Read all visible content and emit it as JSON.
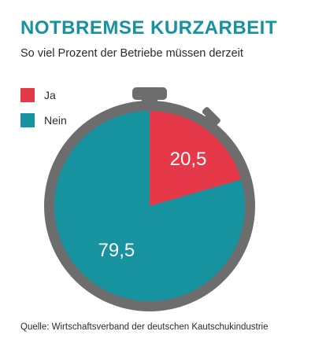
{
  "header": {
    "title": "NOTBREMSE KURZARBEIT",
    "subtitle": "So viel Prozent der Betriebe müssen derzeit"
  },
  "footer": {
    "source": "Quelle: Wirtschaftsverband der deutschen Kautschukindustrie"
  },
  "colors": {
    "ja": "#e5394a",
    "nein": "#17929f",
    "stopwatch": "#6d6d6d",
    "title": "#17929f"
  },
  "chart_data": {
    "type": "pie",
    "title": "NOTBREMSE KURZARBEIT",
    "subtitle": "So viel Prozent der Betriebe müssen derzeit",
    "legend_position": "top-left",
    "slices": [
      {
        "label": "Ja",
        "value": 20.5,
        "value_label": "20,5",
        "color": "#e5394a"
      },
      {
        "label": "Nein",
        "value": 79.5,
        "value_label": "79,5",
        "color": "#17929f"
      }
    ]
  }
}
